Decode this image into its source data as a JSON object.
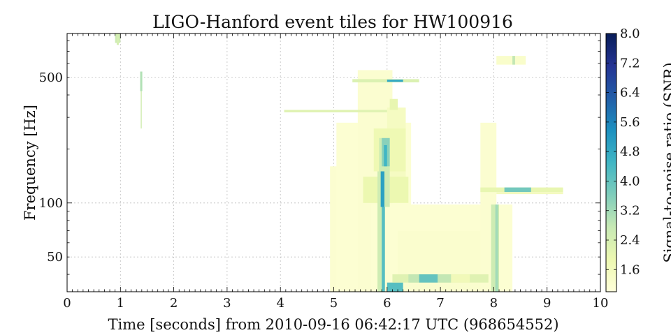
{
  "chart_data": {
    "type": "heatmap",
    "title": "LIGO-Hanford event tiles for HW100916",
    "xlabel": "Time [seconds] from 2010-09-16 06:42:17 UTC (968654552)",
    "ylabel": "Frequency [Hz]",
    "xlim": [
      0,
      10
    ],
    "ylim": [
      32,
      880
    ],
    "yscale": "log",
    "grid": true,
    "x_ticks": [
      "0",
      "1",
      "2",
      "3",
      "4",
      "5",
      "6",
      "7",
      "8",
      "9",
      "10"
    ],
    "y_ticks": [
      {
        "value": 50,
        "label": "50"
      },
      {
        "value": 100,
        "label": "100"
      },
      {
        "value": 500,
        "label": "500"
      }
    ],
    "colorbar": {
      "label": "Signal-to-noise ratio (SNR)",
      "range": [
        1.0,
        8.0
      ],
      "ticks": [
        "1.6",
        "2.4",
        "3.2",
        "4.0",
        "4.8",
        "5.6",
        "6.4",
        "7.2",
        "8.0"
      ],
      "colormap": "YlGnBu",
      "colors": [
        "#ffffd9",
        "#edf8b1",
        "#c7e9b4",
        "#7fcdbb",
        "#41b6c4",
        "#1d91c0",
        "#225ea8",
        "#253494",
        "#081d58"
      ]
    },
    "tiles": [
      {
        "t0": 4.93,
        "t1": 6.15,
        "f0": 32,
        "f1": 160,
        "snr": 1.2
      },
      {
        "t0": 5.05,
        "t1": 6.45,
        "f0": 32,
        "f1": 280,
        "snr": 1.15
      },
      {
        "t0": 5.45,
        "t1": 6.1,
        "f0": 32,
        "f1": 550,
        "snr": 1.2
      },
      {
        "t0": 5.7,
        "t1": 8.35,
        "f0": 32,
        "f1": 98,
        "snr": 1.15
      },
      {
        "t0": 6.2,
        "t1": 7.9,
        "f0": 32,
        "f1": 70,
        "snr": 1.25
      },
      {
        "t0": 7.75,
        "t1": 8.05,
        "f0": 32,
        "f1": 280,
        "snr": 1.2
      },
      {
        "t0": 6.0,
        "t1": 6.35,
        "f0": 120,
        "f1": 340,
        "snr": 1.5
      },
      {
        "t0": 5.75,
        "t1": 6.35,
        "f0": 150,
        "f1": 260,
        "snr": 1.8
      },
      {
        "t0": 5.55,
        "t1": 6.4,
        "f0": 100,
        "f1": 140,
        "snr": 1.9
      },
      {
        "t0": 5.85,
        "t1": 6.05,
        "f0": 95,
        "f1": 230,
        "snr": 2.6
      },
      {
        "t0": 5.9,
        "t1": 6.05,
        "f0": 160,
        "f1": 230,
        "snr": 3.5
      },
      {
        "t0": 6.05,
        "t1": 6.2,
        "f0": 330,
        "f1": 380,
        "snr": 2.0
      },
      {
        "t0": 4.07,
        "t1": 6.0,
        "f0": 320,
        "f1": 330,
        "snr": 2.2
      },
      {
        "t0": 5.35,
        "t1": 6.6,
        "f0": 470,
        "f1": 490,
        "snr": 2.3
      },
      {
        "t0": 6.0,
        "t1": 6.3,
        "f0": 473,
        "f1": 487,
        "snr": 4.8
      },
      {
        "t0": 5.82,
        "t1": 5.92,
        "f0": 32,
        "f1": 150,
        "snr": 2.6
      },
      {
        "t0": 5.88,
        "t1": 5.95,
        "f0": 95,
        "f1": 150,
        "snr": 5.0
      },
      {
        "t0": 5.9,
        "t1": 5.96,
        "f0": 32,
        "f1": 95,
        "snr": 4.2
      },
      {
        "t0": 5.94,
        "t1": 6.0,
        "f0": 160,
        "f1": 210,
        "snr": 4.5
      },
      {
        "t0": 6.0,
        "t1": 6.3,
        "f0": 32,
        "f1": 36,
        "snr": 4.2
      },
      {
        "t0": 6.1,
        "t1": 7.9,
        "f0": 36,
        "f1": 40,
        "snr": 2.2
      },
      {
        "t0": 6.6,
        "t1": 6.95,
        "f0": 36,
        "f1": 40,
        "snr": 4.0
      },
      {
        "t0": 6.4,
        "t1": 6.6,
        "f0": 36,
        "f1": 40,
        "snr": 2.8
      },
      {
        "t0": 6.95,
        "t1": 7.2,
        "f0": 36,
        "f1": 40,
        "snr": 2.8
      },
      {
        "t0": 7.2,
        "t1": 7.55,
        "f0": 36,
        "f1": 40,
        "snr": 1.7
      },
      {
        "t0": 7.95,
        "t1": 8.1,
        "f0": 32,
        "f1": 98,
        "snr": 2.6
      },
      {
        "t0": 8.03,
        "t1": 8.08,
        "f0": 32,
        "f1": 98,
        "snr": 3.2
      },
      {
        "t0": 7.75,
        "t1": 9.3,
        "f0": 115,
        "f1": 122,
        "snr": 2.0
      },
      {
        "t0": 8.2,
        "t1": 8.7,
        "f0": 115,
        "f1": 122,
        "snr": 3.8
      },
      {
        "t0": 8.05,
        "t1": 9.3,
        "f0": 112,
        "f1": 115,
        "snr": 1.6
      },
      {
        "t0": 8.05,
        "t1": 8.6,
        "f0": 590,
        "f1": 660,
        "snr": 1.3
      },
      {
        "t0": 8.35,
        "t1": 8.4,
        "f0": 590,
        "f1": 660,
        "snr": 2.8
      },
      {
        "t0": 0.9,
        "t1": 1.0,
        "f0": 780,
        "f1": 880,
        "snr": 2.6
      },
      {
        "t0": 0.93,
        "t1": 0.97,
        "f0": 760,
        "f1": 880,
        "snr": 2.4
      },
      {
        "t0": 1.37,
        "t1": 1.41,
        "f0": 420,
        "f1": 540,
        "snr": 3.0
      },
      {
        "t0": 1.38,
        "t1": 1.4,
        "f0": 260,
        "f1": 420,
        "snr": 2.5
      }
    ]
  }
}
